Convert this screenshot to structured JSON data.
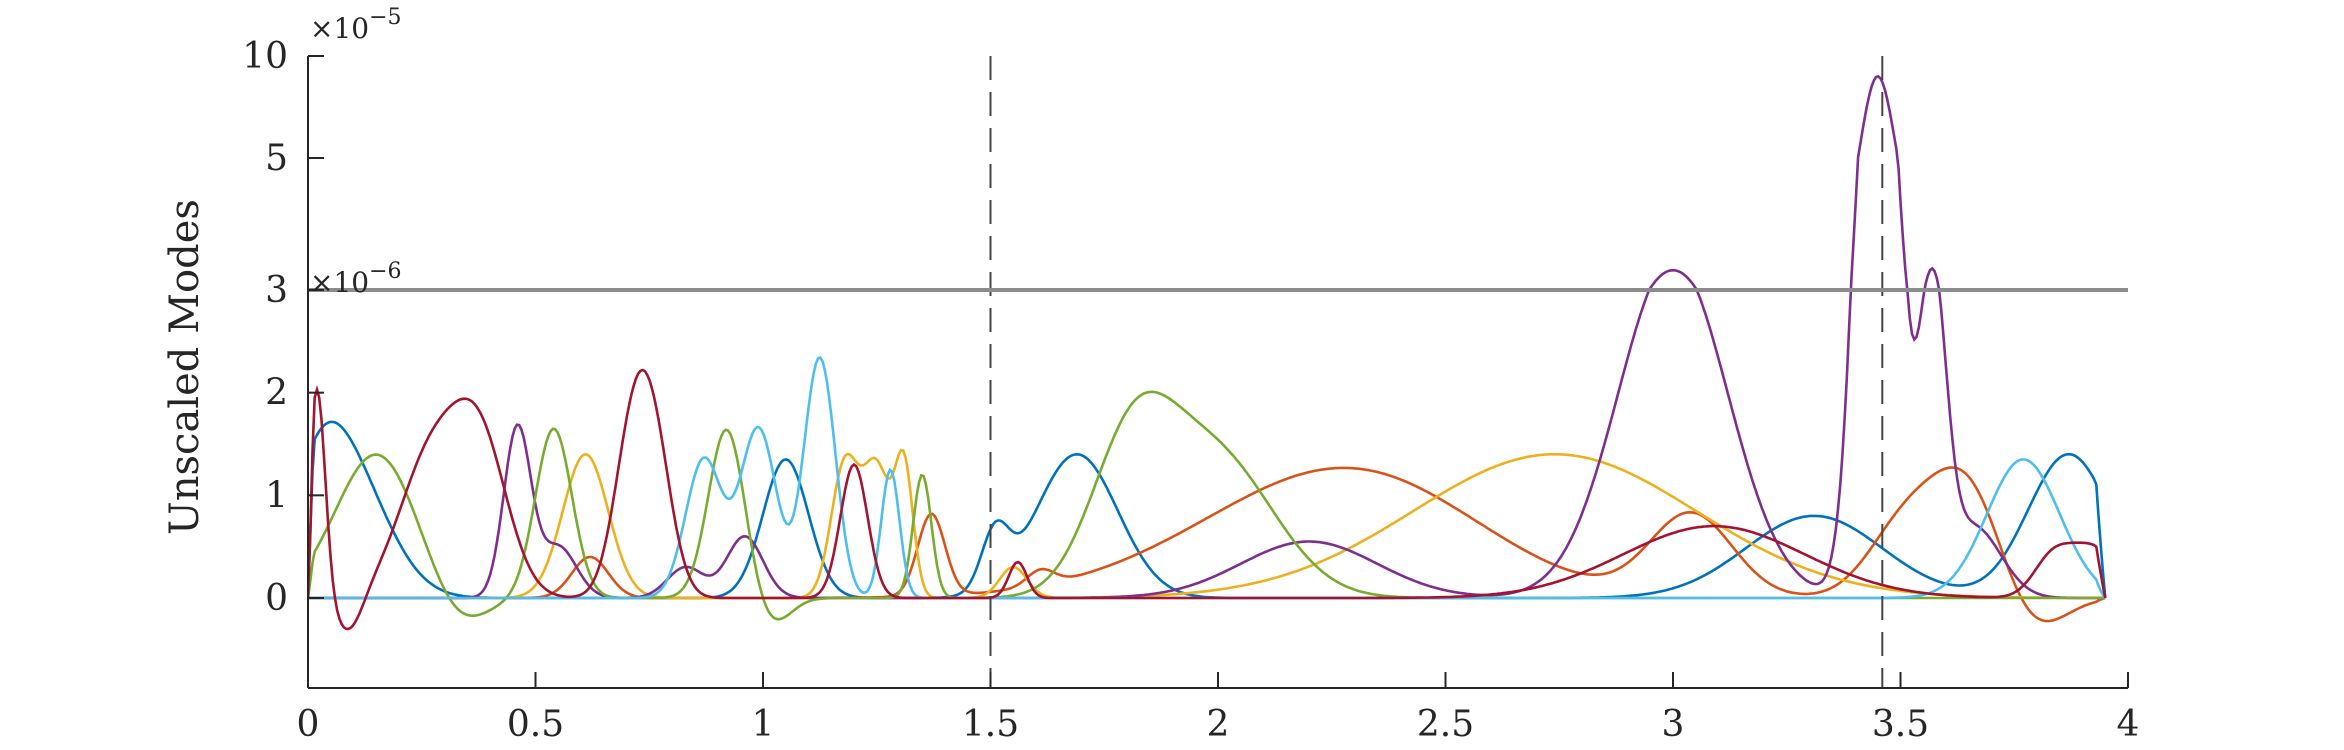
{
  "chart_data": {
    "type": "line",
    "title": "",
    "xlabel": "",
    "ylabel": "Unscaled Modes",
    "xlim": [
      0,
      4
    ],
    "x_ticks": [
      0,
      0.5,
      1,
      1.5,
      2,
      2.5,
      3,
      3.5,
      4
    ],
    "x_tick_labels": [
      "0",
      "0.5",
      "1",
      "1.5",
      "2",
      "2.5",
      "3",
      "3.5",
      "4"
    ],
    "y_scale": "piecewise: linear below 3e-6, compressed above",
    "y_ticks": [
      "0",
      "1",
      "2",
      "3",
      "5",
      "10"
    ],
    "y_exponent_lower": "×10",
    "y_exponent_lower_power": "−6",
    "y_exponent_upper": "×10",
    "y_exponent_upper_power": "−5",
    "grid": false,
    "legend": "none",
    "reference_lines": [
      {
        "type": "vertical",
        "x": 1.5,
        "style": "dashed"
      },
      {
        "type": "vertical",
        "x": 3.46,
        "style": "dashed"
      },
      {
        "type": "horizontal",
        "y": "3e-6",
        "style": "solid-gray"
      }
    ],
    "colors": [
      "#0072BD",
      "#D95319",
      "#EDB120",
      "#7E2F8E",
      "#77AC30",
      "#4DBEEE",
      "#A2142F"
    ],
    "series": [
      {
        "color": "#0072BD",
        "bumps": [
          [
            0.02,
            0.06,
            0.55
          ],
          [
            0.08,
            0.09,
            1.3
          ],
          [
            1.05,
            0.05,
            1.35
          ],
          [
            1.51,
            0.03,
            0.55
          ],
          [
            1.69,
            0.09,
            1.4
          ],
          [
            3.31,
            0.15,
            0.8
          ],
          [
            3.87,
            0.09,
            1.4
          ]
        ]
      },
      {
        "color": "#D95319",
        "bumps": [
          [
            0.62,
            0.04,
            0.4
          ],
          [
            1.37,
            0.03,
            0.8
          ],
          [
            1.61,
            0.03,
            0.15
          ],
          [
            2.33,
            0.33,
            1.4
          ],
          [
            2.65,
            0.25,
            -0.35
          ],
          [
            3.04,
            0.09,
            0.8
          ],
          [
            3.51,
            0.08,
            0.7
          ],
          [
            3.65,
            0.08,
            1.1
          ],
          [
            3.78,
            0.07,
            -0.4
          ]
        ]
      },
      {
        "color": "#EDB120",
        "bumps": [
          [
            0.61,
            0.05,
            1.4
          ],
          [
            1.18,
            0.03,
            1.3
          ],
          [
            1.25,
            0.03,
            1.25
          ],
          [
            1.31,
            0.02,
            1.25
          ],
          [
            1.55,
            0.03,
            0.3
          ],
          [
            2.74,
            0.31,
            1.4
          ]
        ]
      },
      {
        "color": "#7E2F8E",
        "bumps": [
          [
            0.46,
            0.03,
            1.65
          ],
          [
            0.55,
            0.04,
            0.5
          ],
          [
            0.83,
            0.04,
            0.3
          ],
          [
            0.96,
            0.04,
            0.6
          ],
          [
            2.2,
            0.15,
            0.55
          ],
          [
            3.0,
            0.12,
            3.3
          ],
          [
            3.45,
            0.04,
            9.0
          ],
          [
            3.57,
            0.03,
            3.0
          ],
          [
            3.66,
            0.06,
            0.7
          ]
        ]
      },
      {
        "color": "#77AC30",
        "bumps": [
          [
            0.15,
            0.09,
            1.4
          ],
          [
            0.33,
            0.06,
            -0.3
          ],
          [
            0.54,
            0.04,
            1.65
          ],
          [
            0.92,
            0.04,
            1.65
          ],
          [
            1.02,
            0.04,
            -0.25
          ],
          [
            1.35,
            0.02,
            1.2
          ],
          [
            1.81,
            0.09,
            1.35
          ],
          [
            1.99,
            0.13,
            1.4
          ]
        ]
      },
      {
        "color": "#4DBEEE",
        "bumps": [
          [
            0.87,
            0.04,
            1.35
          ],
          [
            0.99,
            0.04,
            1.65
          ],
          [
            1.11,
            0.03,
            1.35
          ],
          [
            1.14,
            0.03,
            1.3
          ],
          [
            1.28,
            0.02,
            1.25
          ],
          [
            3.77,
            0.08,
            1.35
          ]
        ]
      },
      {
        "color": "#A2142F",
        "bumps": [
          [
            0.02,
            0.018,
            2.05
          ],
          [
            0.09,
            0.03,
            -0.35
          ],
          [
            0.27,
            0.07,
            1.35
          ],
          [
            0.38,
            0.06,
            1.4
          ],
          [
            0.71,
            0.04,
            1.35
          ],
          [
            0.76,
            0.04,
            1.35
          ],
          [
            1.2,
            0.03,
            1.3
          ],
          [
            1.56,
            0.02,
            0.35
          ],
          [
            3.09,
            0.2,
            0.7
          ],
          [
            3.83,
            0.04,
            0.3
          ],
          [
            3.92,
            0.06,
            0.5
          ]
        ]
      }
    ]
  }
}
